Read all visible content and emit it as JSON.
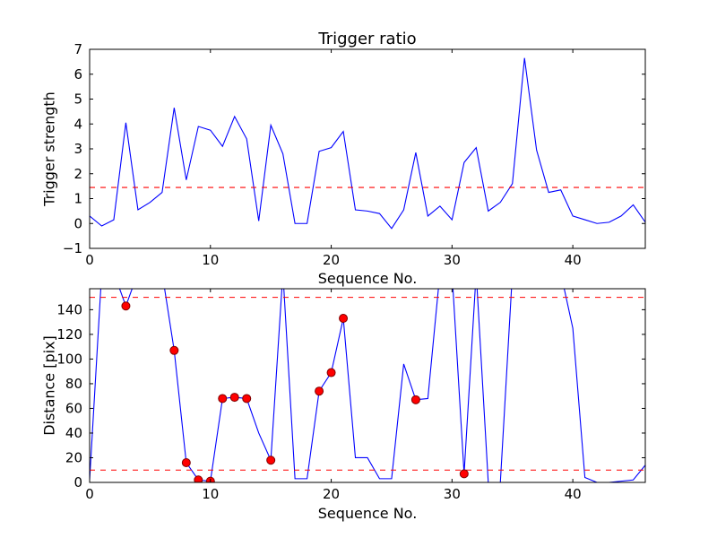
{
  "figure": {
    "background_color": "#ffffff",
    "axes_color": "#000000",
    "line_color": "#0000ff",
    "threshold_color": "#ff0000",
    "marker_fill_color": "#ff0000",
    "marker_edge_color": "#7f0000"
  },
  "chart_data": [
    {
      "type": "line",
      "title": "Trigger ratio",
      "xlabel": "Sequence No.",
      "ylabel": "Trigger strength",
      "xlim": [
        0,
        46
      ],
      "ylim": [
        -1,
        7
      ],
      "xticks": [
        0,
        10,
        20,
        30,
        40
      ],
      "yticks": [
        -1,
        0,
        1,
        2,
        3,
        4,
        5,
        6,
        7
      ],
      "grid": false,
      "thresholds": [
        1.45
      ],
      "x": [
        0,
        1,
        2,
        3,
        4,
        5,
        6,
        7,
        8,
        9,
        10,
        11,
        12,
        13,
        14,
        15,
        16,
        17,
        18,
        19,
        20,
        21,
        22,
        23,
        24,
        25,
        26,
        27,
        28,
        29,
        30,
        31,
        32,
        33,
        34,
        35,
        36,
        37,
        38,
        39,
        40,
        41,
        42,
        43,
        44,
        45,
        46
      ],
      "y": [
        0.3,
        -0.1,
        0.15,
        4.05,
        0.55,
        0.85,
        1.25,
        4.65,
        1.75,
        3.9,
        3.75,
        3.1,
        4.3,
        3.4,
        0.1,
        3.95,
        2.8,
        0.0,
        0.0,
        2.9,
        3.05,
        3.7,
        0.55,
        0.5,
        0.4,
        -0.2,
        0.55,
        2.85,
        0.3,
        0.7,
        0.15,
        2.45,
        3.05,
        0.5,
        0.85,
        1.6,
        6.65,
        2.95,
        1.25,
        1.35,
        0.3,
        0.15,
        0.0,
        0.05,
        0.3,
        0.75,
        0.05
      ]
    },
    {
      "type": "line",
      "title": "",
      "xlabel": "Sequence No.",
      "ylabel": "Distance [pix]",
      "xlim": [
        0,
        46
      ],
      "ylim": [
        0,
        157
      ],
      "xticks": [
        0,
        10,
        20,
        30,
        40
      ],
      "yticks": [
        0,
        20,
        40,
        60,
        80,
        100,
        120,
        140
      ],
      "grid": false,
      "thresholds": [
        150,
        10
      ],
      "x": [
        0,
        1,
        2,
        3,
        4,
        5,
        6,
        7,
        8,
        9,
        10,
        11,
        12,
        13,
        14,
        15,
        16,
        17,
        18,
        19,
        20,
        21,
        22,
        23,
        24,
        25,
        26,
        27,
        28,
        29,
        30,
        31,
        32,
        33,
        34,
        35,
        36,
        37,
        38,
        39,
        40,
        41,
        42,
        43,
        44,
        45,
        46
      ],
      "y": [
        2,
        170,
        170,
        143,
        170,
        170,
        170,
        107,
        16,
        2,
        1,
        68,
        69,
        68,
        40,
        18,
        170,
        3,
        3,
        74,
        89,
        133,
        20,
        20,
        3,
        3,
        96,
        67,
        68,
        170,
        170,
        7,
        170,
        0,
        0,
        170,
        170,
        170,
        170,
        170,
        125,
        4,
        0,
        0,
        1,
        2,
        14
      ],
      "marker_indices": [
        3,
        7,
        8,
        9,
        10,
        11,
        12,
        13,
        15,
        19,
        20,
        21,
        27,
        31
      ]
    }
  ]
}
